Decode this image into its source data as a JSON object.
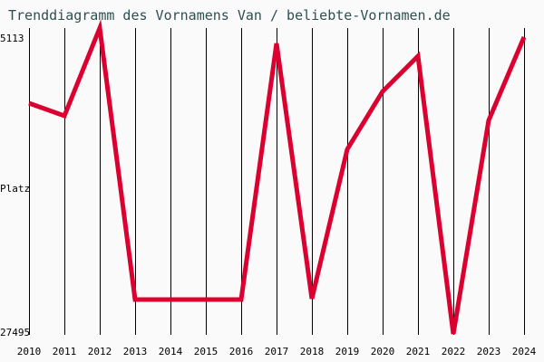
{
  "chart_data": {
    "type": "line",
    "title": "Trenddiagramm des Vornamens Van / beliebte-Vornamen.de",
    "xlabel": "",
    "ylabel": "Platz",
    "y_inverted": true,
    "ylim": [
      5113,
      27495
    ],
    "y_tick_labels": [
      "5113",
      "27495"
    ],
    "x": [
      "2010",
      "2011",
      "2012",
      "2013",
      "2014",
      "2015",
      "2016",
      "2017",
      "2018",
      "2019",
      "2020",
      "2021",
      "2022",
      "2023",
      "2024"
    ],
    "series": [
      {
        "name": "Van",
        "color": "#dc0030",
        "values": [
          10609,
          11536,
          5113,
          24979,
          24979,
          24979,
          24979,
          6239,
          24913,
          13986,
          9748,
          7166,
          27495,
          11867,
          5775
        ]
      }
    ],
    "grid": {
      "vertical": true,
      "horizontal": false
    },
    "legend": "none"
  },
  "colors": {
    "background": "#fafafa",
    "title": "#2f4f4f",
    "line": "#dc0030",
    "grid": "#000000"
  }
}
